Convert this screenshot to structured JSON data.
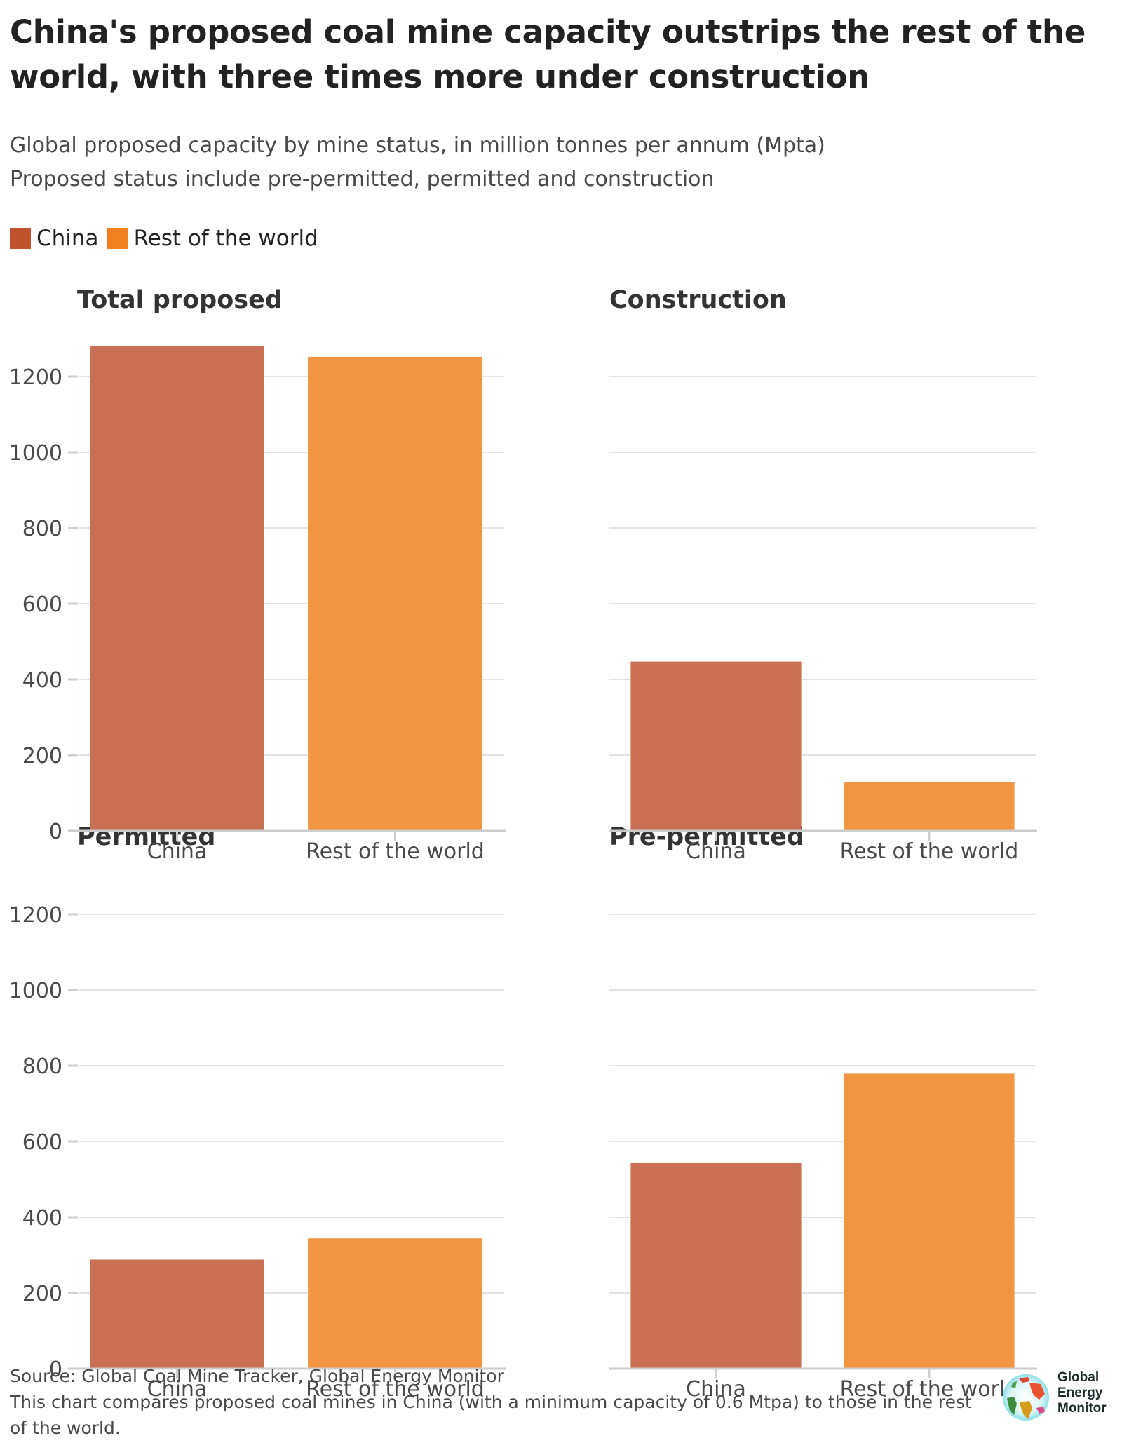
{
  "header": {
    "title": "China's proposed coal mine capacity outstrips the rest of the world, with three times more under construction",
    "subtitle_lines": [
      "Global proposed capacity by mine status, in million tonnes per annum (Mpta)",
      "Proposed status include pre-permitted, permitted and construction"
    ]
  },
  "legend": [
    {
      "label": "China",
      "color": "#c0532e"
    },
    {
      "label": "Rest of the world",
      "color": "#f08020"
    }
  ],
  "chart_data": [
    {
      "type": "bar",
      "title": "Total proposed",
      "categories": [
        "China",
        "Rest of the world"
      ],
      "values": [
        1280,
        1252
      ],
      "colors": [
        "#c96f53",
        "#f29541"
      ],
      "xlabel": "",
      "ylabel": "",
      "ylim": [
        0,
        1200
      ],
      "yticks": [
        0,
        200,
        400,
        600,
        800,
        1000,
        1200
      ],
      "show_ytick_labels": true,
      "grid": true
    },
    {
      "type": "bar",
      "title": "Construction",
      "categories": [
        "China",
        "Rest of the world"
      ],
      "values": [
        447,
        128
      ],
      "colors": [
        "#c96f53",
        "#f29541"
      ],
      "xlabel": "",
      "ylabel": "",
      "ylim": [
        0,
        1200
      ],
      "yticks": [
        0,
        200,
        400,
        600,
        800,
        1000,
        1200
      ],
      "show_ytick_labels": false,
      "grid": true
    },
    {
      "type": "bar",
      "title": "Permitted",
      "categories": [
        "China",
        "Rest of the world"
      ],
      "values": [
        288,
        344
      ],
      "colors": [
        "#c96f53",
        "#f29541"
      ],
      "xlabel": "",
      "ylabel": "",
      "ylim": [
        0,
        1200
      ],
      "yticks": [
        0,
        200,
        400,
        600,
        800,
        1000,
        1200
      ],
      "show_ytick_labels": true,
      "grid": true
    },
    {
      "type": "bar",
      "title": "Pre-permitted",
      "categories": [
        "China",
        "Rest of the world"
      ],
      "values": [
        544,
        779
      ],
      "colors": [
        "#c96f53",
        "#f29541"
      ],
      "xlabel": "",
      "ylabel": "",
      "ylim": [
        0,
        1200
      ],
      "yticks": [
        0,
        200,
        400,
        600,
        800,
        1000,
        1200
      ],
      "show_ytick_labels": false,
      "grid": true
    }
  ],
  "footer": {
    "source": "Source: Global Coal Mine Tracker, Global Energy Monitor",
    "note": "This chart compares proposed coal mines in China (with a minimum capacity of 0.6 Mtpa) to those in the rest of the world."
  },
  "logo": {
    "lines": [
      "Global",
      "Energy",
      "Monitor"
    ],
    "icon": "globe-icon"
  }
}
